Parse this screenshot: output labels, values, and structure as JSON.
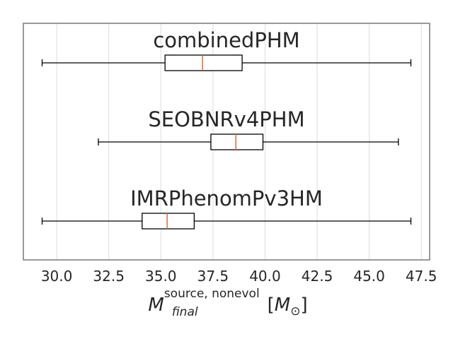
{
  "chart_data": {
    "type": "boxplot",
    "orientation": "horizontal",
    "grid": "vertical",
    "xlim": [
      28.4,
      47.9
    ],
    "xticks": [
      "30.0",
      "32.5",
      "35.0",
      "37.5",
      "40.0",
      "42.5",
      "45.0",
      "47.5"
    ],
    "xlabel": {
      "symbol": "M",
      "subscript": "final",
      "superscript": "source, nonevol",
      "unit_symbol": "M",
      "unit_subscript": "⊙"
    },
    "series": [
      {
        "name": "combinedPHM",
        "whislo": 29.3,
        "q1": 35.2,
        "med": 37.0,
        "q3": 38.9,
        "whishi": 47.0
      },
      {
        "name": "SEOBNRv4PHM",
        "whislo": 32.0,
        "q1": 37.4,
        "med": 38.6,
        "q3": 39.9,
        "whishi": 46.4
      },
      {
        "name": "IMRPhenomPv3HM",
        "whislo": 29.3,
        "q1": 34.1,
        "med": 35.3,
        "q3": 36.6,
        "whishi": 47.0
      }
    ],
    "colors": {
      "box": "#000000",
      "median": "#dd6d2c",
      "grid": "#dcdcdc",
      "frame": "#808080",
      "text": "#262626"
    }
  }
}
